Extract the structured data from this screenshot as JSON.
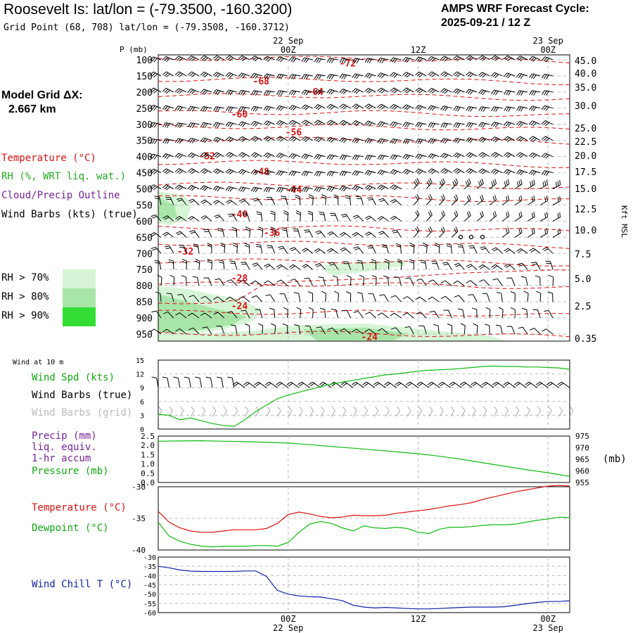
{
  "header": {
    "title": "Roosevelt Is:  lat/lon = (-79.3500, -160.3200)",
    "grid_point": "Grid Point (68, 708) lat/lon = (-79.3508, -160.3712)",
    "cycle_line1": "AMPS WRF Forecast Cycle:",
    "cycle_line2": "2025-09-21 / 12  Z",
    "model_grid_label": "Model Grid ΔX:",
    "model_grid_value": "2.667 km"
  },
  "colors": {
    "temperature": "#dd1111",
    "rh": "#22aa22",
    "cloud": "#772299",
    "dewpoint": "#11bb11",
    "windchill": "#1122aa",
    "gridbarb": "#aaaaaa",
    "rh70": "#d6f5d6",
    "rh80": "#a8e6a8",
    "rh90": "#33dd33"
  },
  "legend": {
    "temperature": "Temperature (°C)",
    "rh": "RH (%, WRT liq. wat.)",
    "cloud": "Cloud/Precip Outline",
    "wind_barbs": "Wind Barbs (kts) (true)",
    "rh70": "RH > 70%",
    "rh80": "RH > 80%",
    "rh90": "RH > 90%"
  },
  "chart_data": [
    {
      "type": "line",
      "panel": "upper_air_cross_section",
      "time_labels_top": [
        {
          "top": "22 Sep",
          "bottom": "00Z"
        },
        {
          "top": "",
          "bottom": "12Z"
        },
        {
          "top": "23 Sep",
          "bottom": "00Z"
        }
      ],
      "ylabel": "P (mb)",
      "pressure_levels": [
        "100",
        "150",
        "200",
        "250",
        "300",
        "350",
        "400",
        "450",
        "500",
        "550",
        "600",
        "650",
        "700",
        "750",
        "800",
        "850",
        "900",
        "950"
      ],
      "right_axis_label": "Kft MSL",
      "right_axis_ticks": [
        "45.0",
        "40.0",
        "35.0",
        "30.0",
        "25.0",
        "22.5",
        "20.0",
        "17.5",
        "15.0",
        "12.5",
        "10.0",
        "7.5",
        "5.0",
        "2.5",
        "0.35"
      ],
      "temperature_labels": [
        {
          "text": "-72",
          "p": 112,
          "t": 17.5
        },
        {
          "text": "-68",
          "p": 168,
          "t": 9.5
        },
        {
          "text": "-64",
          "p": 200,
          "t": 14.5
        },
        {
          "text": "-60",
          "p": 270,
          "t": 7.5
        },
        {
          "text": "-56",
          "p": 326,
          "t": 12.5
        },
        {
          "text": "-52",
          "p": 400,
          "t": 4.5
        },
        {
          "text": "-48",
          "p": 448,
          "t": 9.5
        },
        {
          "text": "-44",
          "p": 503,
          "t": 12.5
        },
        {
          "text": "-40",
          "p": 580,
          "t": 7.5
        },
        {
          "text": "-36",
          "p": 637,
          "t": 10.5
        },
        {
          "text": "-32",
          "p": 695,
          "t": 2.5
        },
        {
          "text": "-28",
          "p": 778,
          "t": 7.5
        },
        {
          "text": "-24",
          "p": 864,
          "t": 7.5
        },
        {
          "text": "-24",
          "p": 960,
          "t": 19.5
        }
      ]
    },
    {
      "type": "line",
      "panel": "wind_10m",
      "label": "Wind at 10 m",
      "series_labels": {
        "speed": "Wind Spd (kts)",
        "barbs_true": "Wind Barbs (true)",
        "barbs_grid": "Wind Barbs (grid)"
      },
      "y_ticks": [
        "15",
        "12",
        "9",
        "6",
        "3",
        "0"
      ],
      "ylim": [
        0,
        15
      ],
      "hours": [
        0,
        1,
        2,
        3,
        4,
        5,
        6,
        7,
        8,
        9,
        10,
        11,
        12,
        13,
        14,
        15,
        16,
        17,
        18,
        19,
        20,
        21,
        22,
        23,
        24,
        25,
        26,
        27,
        28,
        29,
        30,
        31,
        32,
        33,
        34,
        35,
        36,
        37,
        38
      ],
      "series": [
        {
          "name": "Wind Spd (kts)",
          "values": [
            3.2,
            3.0,
            2.0,
            2.4,
            1.8,
            1.2,
            0.8,
            0.6,
            2.0,
            3.8,
            5.2,
            6.6,
            7.4,
            8.0,
            8.6,
            9.2,
            9.8,
            10.2,
            10.6,
            11.0,
            11.4,
            11.8,
            12.0,
            12.3,
            12.6,
            12.8,
            12.9,
            13.0,
            13.2,
            13.4,
            13.6,
            13.7,
            13.6,
            13.6,
            13.5,
            13.5,
            13.4,
            13.3,
            13.0
          ]
        }
      ]
    },
    {
      "type": "line",
      "panel": "precip_pressure",
      "series_labels": {
        "precip": "Precip (mm)",
        "liq": "liq. equiv.",
        "accum": "1-hr accum",
        "pressure": "Pressure (mb)"
      },
      "left_ticks": [
        "2.5",
        "2.0",
        "1.5",
        "1.0",
        "0.5",
        "0.0"
      ],
      "right_ticks": [
        "975",
        "970",
        "965",
        "960",
        "955"
      ],
      "right_label": "(mb)",
      "ylim_pressure": [
        955,
        975
      ],
      "hours": [
        0,
        2,
        4,
        6,
        8,
        10,
        12,
        14,
        16,
        18,
        20,
        22,
        24,
        26,
        28,
        30,
        32,
        34,
        36,
        38
      ],
      "series": [
        {
          "name": "Pressure (mb)",
          "values": [
            972.8,
            972.9,
            973.0,
            972.8,
            972.6,
            972.3,
            972.0,
            971.3,
            970.5,
            969.8,
            969.0,
            968.2,
            967.4,
            966.3,
            965.0,
            963.5,
            962.0,
            960.5,
            959.2,
            957.6
          ]
        }
      ]
    },
    {
      "type": "line",
      "panel": "temperature_dewpoint",
      "series_labels": {
        "temperature": "Temperature (°C)",
        "dewpoint": "Dewpoint (°C)"
      },
      "y_ticks": [
        "-30",
        "-35",
        "-40"
      ],
      "ylim": [
        -40,
        -30
      ],
      "hours": [
        0,
        1,
        2,
        3,
        4,
        5,
        6,
        7,
        8,
        9,
        10,
        11,
        12,
        13,
        14,
        15,
        16,
        17,
        18,
        19,
        20,
        21,
        22,
        23,
        24,
        25,
        26,
        27,
        28,
        29,
        30,
        31,
        32,
        33,
        34,
        35,
        36,
        37,
        38
      ],
      "series": [
        {
          "name": "Temperature (°C)",
          "values": [
            -33.9,
            -35.6,
            -36.5,
            -37.0,
            -37.2,
            -37.2,
            -37.0,
            -36.8,
            -36.8,
            -36.8,
            -36.6,
            -35.8,
            -34.4,
            -34.0,
            -34.3,
            -34.7,
            -34.9,
            -34.8,
            -34.5,
            -34.6,
            -34.6,
            -34.5,
            -34.2,
            -34.0,
            -33.8,
            -33.6,
            -33.3,
            -33.0,
            -32.8,
            -32.5,
            -32.0,
            -31.6,
            -31.2,
            -30.8,
            -30.5,
            -30.2,
            -29.9,
            -29.8,
            -29.9
          ]
        },
        {
          "name": "Dewpoint (°C)",
          "values": [
            -35.6,
            -37.8,
            -38.6,
            -39.1,
            -39.4,
            -39.5,
            -39.4,
            -39.4,
            -39.4,
            -39.3,
            -39.3,
            -39.4,
            -38.8,
            -37.2,
            -35.9,
            -35.5,
            -35.8,
            -36.5,
            -37.0,
            -36.2,
            -36.5,
            -36.6,
            -36.4,
            -36.6,
            -37.2,
            -37.4,
            -36.7,
            -36.4,
            -36.4,
            -36.3,
            -36.1,
            -36.0,
            -36.0,
            -35.9,
            -35.6,
            -35.3,
            -35.1,
            -34.8,
            -34.9
          ]
        }
      ]
    },
    {
      "type": "line",
      "panel": "wind_chill",
      "series_labels": {
        "windchill": "Wind Chill T (°C)"
      },
      "y_ticks": [
        "-30",
        "-35",
        "-40",
        "-45",
        "-50",
        "-55",
        "-60"
      ],
      "ylim": [
        -60,
        -30
      ],
      "hours": [
        0,
        1,
        2,
        3,
        4,
        5,
        6,
        7,
        8,
        9,
        10,
        11,
        12,
        13,
        14,
        15,
        16,
        17,
        18,
        19,
        20,
        21,
        22,
        23,
        24,
        25,
        26,
        27,
        28,
        29,
        30,
        31,
        32,
        33,
        34,
        35,
        36,
        37,
        38
      ],
      "series": [
        {
          "name": "Wind Chill T (°C)",
          "values": [
            -35.0,
            -35.8,
            -37.0,
            -37.6,
            -37.8,
            -37.8,
            -37.8,
            -37.8,
            -37.5,
            -37.5,
            -40.5,
            -48.0,
            -50.0,
            -51.0,
            -51.4,
            -51.6,
            -52.5,
            -53.5,
            -56.0,
            -57.0,
            -57.5,
            -57.2,
            -57.5,
            -57.8,
            -58.0,
            -58.0,
            -57.8,
            -57.5,
            -57.2,
            -57.0,
            -57.0,
            -57.0,
            -56.8,
            -56.0,
            -55.2,
            -54.5,
            -54.0,
            -54.0,
            -53.6
          ]
        }
      ]
    },
    {
      "type": "table",
      "panel": "bottom_time_axis",
      "time_labels_bottom": [
        {
          "top": "00Z",
          "bottom": "22 Sep"
        },
        {
          "top": "12Z",
          "bottom": ""
        },
        {
          "top": "00Z",
          "bottom": "23 Sep"
        }
      ]
    }
  ],
  "sidebars": {
    "wind10": {
      "title": "Wind at 10 m",
      "speed": "Wind Spd (kts)",
      "barbs_true": "Wind Barbs (true)",
      "barbs_grid": "Wind Barbs (grid)"
    },
    "precip": {
      "line1": "Precip (mm)",
      "line2": "liq. equiv.",
      "line3": "1-hr accum",
      "line4": "Pressure (mb)"
    },
    "temp": {
      "temperature": "Temperature (°C)",
      "dewpoint": "Dewpoint (°C)"
    },
    "windchill": {
      "label": "Wind Chill T (°C)"
    }
  }
}
